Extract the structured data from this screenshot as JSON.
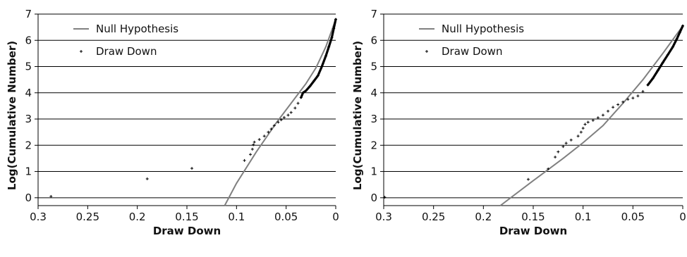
{
  "chart_data": [
    {
      "type": "line",
      "xlabel": "Draw Down",
      "ylabel": "Log(Cumulative Number)",
      "xlim": [
        0.3,
        0
      ],
      "ylim": [
        -0.3,
        7
      ],
      "x_reversed": true,
      "x_ticks": [
        "0.3",
        "0.25",
        "0.2",
        "0.15",
        "0.1",
        "0.05",
        "0"
      ],
      "y_ticks": [
        "0",
        "1",
        "2",
        "3",
        "4",
        "5",
        "6",
        "7"
      ],
      "grid": "horizontal",
      "legend_position": "top-left",
      "colors": {
        "null": "#808080",
        "drawdown": "#000000",
        "grid": "#000000"
      },
      "series": [
        {
          "name": "Null Hypothesis",
          "kind": "line",
          "points": [
            [
              0.112,
              -0.3
            ],
            [
              0.1,
              0.55
            ],
            [
              0.08,
              1.75
            ],
            [
              0.06,
              2.85
            ],
            [
              0.04,
              3.85
            ],
            [
              0.03,
              4.35
            ],
            [
              0.02,
              4.95
            ],
            [
              0.01,
              5.75
            ],
            [
              0.0,
              6.8
            ]
          ]
        },
        {
          "name": "Draw Down",
          "kind": "scatter",
          "points": [
            [
              0.287,
              0.05
            ],
            [
              0.19,
              0.72
            ],
            [
              0.145,
              1.12
            ],
            [
              0.092,
              1.42
            ],
            [
              0.086,
              1.65
            ],
            [
              0.084,
              1.85
            ],
            [
              0.083,
              2.02
            ],
            [
              0.082,
              2.12
            ],
            [
              0.077,
              2.22
            ],
            [
              0.072,
              2.35
            ],
            [
              0.068,
              2.5
            ],
            [
              0.065,
              2.62
            ],
            [
              0.062,
              2.75
            ],
            [
              0.058,
              2.88
            ],
            [
              0.055,
              2.97
            ],
            [
              0.052,
              3.06
            ],
            [
              0.048,
              3.15
            ],
            [
              0.045,
              3.25
            ],
            [
              0.041,
              3.42
            ],
            [
              0.038,
              3.6
            ],
            [
              0.035,
              3.82
            ],
            [
              0.033,
              4.0
            ],
            [
              0.03,
              4.08
            ],
            [
              0.026,
              4.25
            ],
            [
              0.022,
              4.45
            ],
            [
              0.018,
              4.65
            ],
            [
              0.014,
              5.0
            ],
            [
              0.01,
              5.4
            ],
            [
              0.007,
              5.75
            ],
            [
              0.004,
              6.1
            ],
            [
              0.002,
              6.45
            ],
            [
              0.0,
              6.8
            ]
          ]
        }
      ]
    },
    {
      "type": "line",
      "xlabel": "Draw Down",
      "ylabel": "Log(Cumulative Number)",
      "xlim": [
        0.3,
        0
      ],
      "ylim": [
        -0.3,
        7
      ],
      "x_reversed": true,
      "x_ticks": [
        "0.3",
        "0.25",
        "0.2",
        "0.15",
        "0.1",
        "0.05",
        "0"
      ],
      "y_ticks": [
        "0",
        "1",
        "2",
        "3",
        "4",
        "5",
        "6",
        "7"
      ],
      "grid": "horizontal",
      "legend_position": "top-left",
      "colors": {
        "null": "#808080",
        "drawdown": "#000000",
        "grid": "#000000"
      },
      "series": [
        {
          "name": "Null Hypothesis",
          "kind": "line",
          "points": [
            [
              0.183,
              -0.3
            ],
            [
              0.15,
              0.65
            ],
            [
              0.12,
              1.5
            ],
            [
              0.1,
              2.1
            ],
            [
              0.08,
              2.75
            ],
            [
              0.06,
              3.6
            ],
            [
              0.04,
              4.5
            ],
            [
              0.02,
              5.5
            ],
            [
              0.0,
              6.55
            ]
          ]
        },
        {
          "name": "Draw Down",
          "kind": "scatter",
          "points": [
            [
              0.299,
              0.02
            ],
            [
              0.155,
              0.7
            ],
            [
              0.135,
              1.1
            ],
            [
              0.128,
              1.55
            ],
            [
              0.125,
              1.75
            ],
            [
              0.12,
              1.95
            ],
            [
              0.117,
              2.08
            ],
            [
              0.112,
              2.2
            ],
            [
              0.105,
              2.35
            ],
            [
              0.102,
              2.5
            ],
            [
              0.1,
              2.65
            ],
            [
              0.098,
              2.8
            ],
            [
              0.095,
              2.88
            ],
            [
              0.09,
              2.95
            ],
            [
              0.085,
              3.05
            ],
            [
              0.08,
              3.15
            ],
            [
              0.075,
              3.3
            ],
            [
              0.07,
              3.45
            ],
            [
              0.065,
              3.55
            ],
            [
              0.06,
              3.65
            ],
            [
              0.055,
              3.75
            ],
            [
              0.05,
              3.8
            ],
            [
              0.045,
              3.88
            ],
            [
              0.04,
              4.05
            ],
            [
              0.035,
              4.3
            ],
            [
              0.03,
              4.55
            ],
            [
              0.025,
              4.85
            ],
            [
              0.02,
              5.15
            ],
            [
              0.015,
              5.45
            ],
            [
              0.01,
              5.75
            ],
            [
              0.006,
              6.05
            ],
            [
              0.003,
              6.3
            ],
            [
              0.0,
              6.55
            ]
          ]
        }
      ]
    }
  ]
}
